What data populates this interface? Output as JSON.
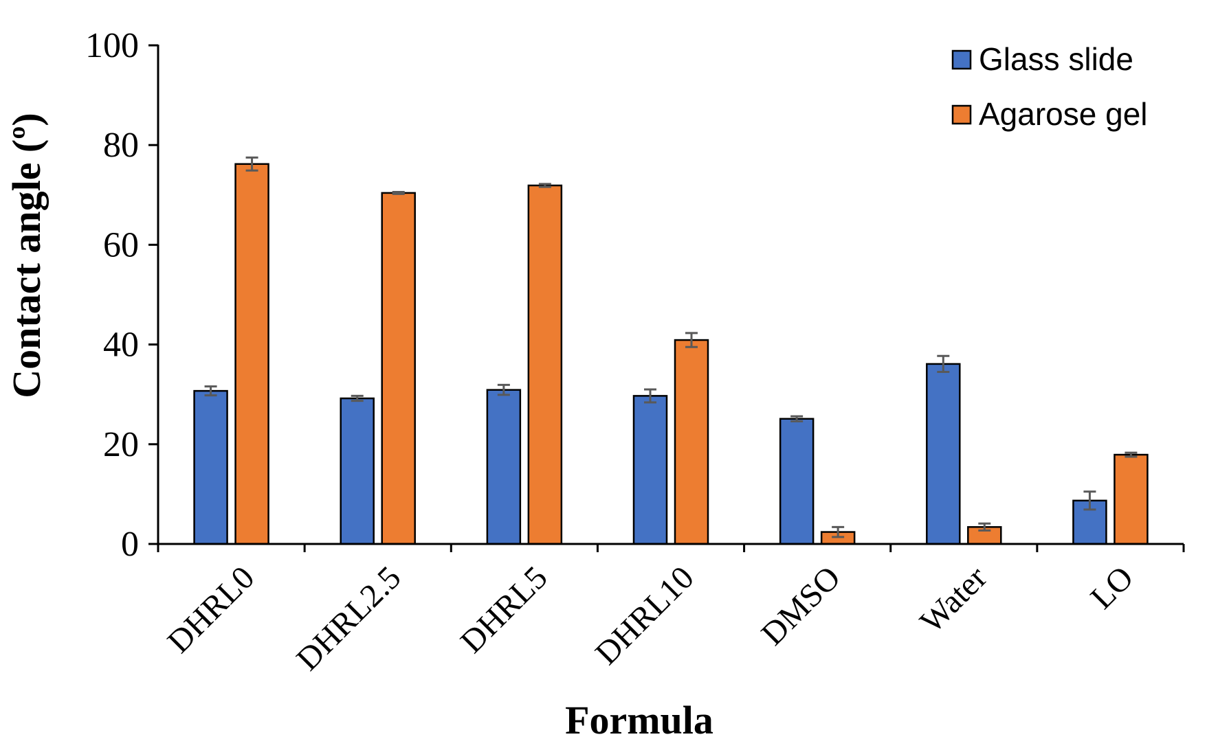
{
  "chart_data": {
    "type": "bar",
    "title": "",
    "xlabel": "Formula",
    "ylabel": "Contact angle (º)",
    "ylim": [
      0,
      100
    ],
    "yticks": [
      0,
      20,
      40,
      60,
      80,
      100
    ],
    "grid": false,
    "legend_position": "top-right",
    "categories": [
      "DHRL0",
      "DHRL2.5",
      "DHRL5",
      "DHRL10",
      "DMSO",
      "Water",
      "LO"
    ],
    "series": [
      {
        "name": "Glass slide",
        "color": "#4472C4",
        "values": [
          30.7,
          29.2,
          30.9,
          29.7,
          25.1,
          36.1,
          8.7
        ],
        "errors": [
          0.9,
          0.5,
          1.0,
          1.3,
          0.5,
          1.6,
          1.8
        ]
      },
      {
        "name": "Agarose gel",
        "color": "#ED7D31",
        "values": [
          76.2,
          70.4,
          71.9,
          40.9,
          2.4,
          3.4,
          17.9
        ],
        "errors": [
          1.3,
          0.2,
          0.3,
          1.4,
          1.0,
          0.7,
          0.4
        ]
      }
    ]
  }
}
